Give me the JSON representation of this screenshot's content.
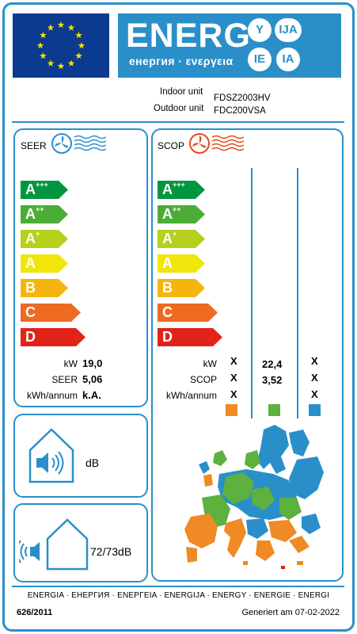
{
  "header": {
    "energy_word": "ENERG",
    "energy_sub": "енергия · ενεργεια",
    "lang_codes": [
      "Y",
      "IJA",
      "IE",
      "IA"
    ]
  },
  "units": {
    "indoor_label": "Indoor unit",
    "indoor_value": "FDSZ2003HV",
    "outdoor_label": "Outdoor unit",
    "outdoor_value": "FDC200VSA"
  },
  "cooling": {
    "title": "SEER",
    "classes": [
      "A+++",
      "A++",
      "A+",
      "A",
      "B",
      "C",
      "D"
    ],
    "specs": [
      {
        "label": "kW",
        "value": "19,0"
      },
      {
        "label": "SEER",
        "value": "5,06"
      },
      {
        "label": "kWh/annum",
        "value": "k.A."
      }
    ]
  },
  "heating": {
    "title": "SCOP",
    "classes": [
      "A+++",
      "A++",
      "A+",
      "A",
      "B",
      "C",
      "D"
    ],
    "spec_labels": [
      "kW",
      "SCOP",
      "kWh/annum"
    ],
    "zones": [
      {
        "color": "#f08a24",
        "values": [
          "X",
          "X",
          "X"
        ]
      },
      {
        "color": "#5cb13f",
        "values": [
          "22,4",
          "3,52",
          ""
        ]
      },
      {
        "color": "#2a8fc9",
        "values": [
          "X",
          "X",
          "X"
        ]
      }
    ]
  },
  "noise": {
    "indoor_value": "dB",
    "outdoor_value": "72/73dB"
  },
  "footer": {
    "languages": "ENERGIA · ЕНЕРГИЯ · ΕΝΕΡΓΕΙΑ · ENERGIJA · ENERGY · ENERGIE · ENERGI",
    "regulation": "626/2011",
    "generated": "Generiert am 07-02-2022"
  },
  "colors": {
    "frame": "#2a8fc9",
    "class_colors": [
      "#009640",
      "#4cad36",
      "#b7cf1d",
      "#f0e60c",
      "#f5b50e",
      "#ec6b21",
      "#e2231a"
    ]
  },
  "icons": [
    "eu-flag-icon",
    "fan-cooling-icon",
    "fan-heating-icon",
    "indoor-speaker-icon",
    "outdoor-speaker-icon",
    "europe-climate-map"
  ]
}
